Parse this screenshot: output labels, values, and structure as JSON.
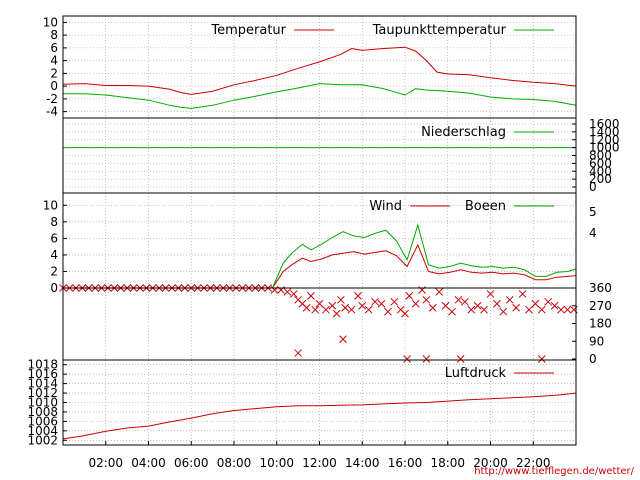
{
  "footer_url": "http://www.tiefflegen.de/wetter/",
  "colors": {
    "red": "#cc0000",
    "green": "#00aa00",
    "grid": "#999999"
  },
  "chart_data": [
    {
      "type": "line",
      "panel": "temperature",
      "x_unit": "hour",
      "xlim": [
        0,
        24
      ],
      "x_tick_labels": [
        "02:00",
        "04:00",
        "06:00",
        "08:00",
        "10:00",
        "12:00",
        "14:00",
        "16:00",
        "18:00",
        "20:00",
        "22:00"
      ],
      "x_tick_values": [
        2,
        4,
        6,
        8,
        10,
        12,
        14,
        16,
        18,
        20,
        22
      ],
      "ylim": [
        -5,
        11
      ],
      "y_ticks": [
        -4,
        -2,
        0,
        2,
        4,
        6,
        8,
        10
      ],
      "grid": true,
      "legend_position": "top-right",
      "series": [
        {
          "name": "Temperatur",
          "color": "red",
          "x": [
            0,
            1,
            2,
            3,
            4,
            5,
            5.5,
            6,
            7,
            8,
            9,
            10,
            11,
            12,
            13,
            13.5,
            14,
            15,
            16,
            16.5,
            17,
            17.5,
            18,
            19,
            20,
            21,
            22,
            23,
            24
          ],
          "y": [
            0.3,
            0.4,
            0.1,
            0.1,
            0.0,
            -0.5,
            -1.0,
            -1.3,
            -0.8,
            0.2,
            0.9,
            1.7,
            2.8,
            3.8,
            5.0,
            5.9,
            5.6,
            5.9,
            6.1,
            5.5,
            4.0,
            2.2,
            1.9,
            1.8,
            1.3,
            0.9,
            0.6,
            0.4,
            0.0
          ]
        },
        {
          "name": "Taupunkttemperatur",
          "color": "green",
          "x": [
            0,
            1,
            2,
            3,
            4,
            5,
            5.5,
            6,
            7,
            8,
            9,
            10,
            11,
            12,
            13,
            14,
            15,
            16,
            16.5,
            17,
            18,
            19,
            20,
            21,
            22,
            23,
            24
          ],
          "y": [
            -1.2,
            -1.2,
            -1.4,
            -1.8,
            -2.2,
            -3.0,
            -3.3,
            -3.5,
            -3.0,
            -2.2,
            -1.6,
            -0.9,
            -0.3,
            0.4,
            0.2,
            0.2,
            -0.4,
            -1.4,
            -0.4,
            -0.6,
            -0.8,
            -1.1,
            -1.7,
            -2.0,
            -2.1,
            -2.4,
            -3.0
          ]
        }
      ]
    },
    {
      "type": "line",
      "panel": "precipitation",
      "xlim": [
        0,
        24
      ],
      "ylim": [
        0,
        1600
      ],
      "y_ticks": [
        0,
        200,
        400,
        600,
        800,
        1000,
        1200,
        1400,
        1600
      ],
      "y_axis_side": "right",
      "legend_position": "top-right",
      "series": [
        {
          "name": "Niederschlag",
          "color": "green",
          "x": [
            0,
            24
          ],
          "y": [
            1000,
            1000
          ]
        }
      ]
    },
    {
      "type": "line",
      "panel": "wind",
      "xlim": [
        0,
        24
      ],
      "ylim": [
        0,
        11
      ],
      "y_ticks": [
        0,
        2,
        4,
        6,
        8,
        10
      ],
      "right_y_ticks": [
        4,
        5
      ],
      "legend_position": "top-right",
      "series": [
        {
          "name": "Wind",
          "color": "red",
          "x": [
            9.8,
            10.3,
            10.7,
            11.2,
            11.6,
            12.1,
            12.6,
            13.1,
            13.6,
            14.1,
            14.6,
            15.1,
            15.6,
            16.1,
            16.6,
            17.1,
            17.6,
            18.1,
            18.6,
            19.1,
            19.6,
            20.1,
            20.6,
            21.1,
            21.6,
            22.1,
            22.6,
            23.1,
            23.6,
            24
          ],
          "y": [
            0,
            2.0,
            2.8,
            3.6,
            3.2,
            3.5,
            4.0,
            4.2,
            4.4,
            4.1,
            4.3,
            4.5,
            3.9,
            2.6,
            5.2,
            2.0,
            1.7,
            1.9,
            2.2,
            1.9,
            1.8,
            1.9,
            1.7,
            1.8,
            1.6,
            1.0,
            1.0,
            1.3,
            1.4,
            1.5
          ]
        },
        {
          "name": "Boeen",
          "color": "green",
          "x": [
            9.8,
            10.3,
            10.7,
            11.2,
            11.6,
            12.1,
            12.6,
            13.1,
            13.6,
            14.1,
            14.6,
            15.1,
            15.6,
            16.1,
            16.6,
            17.1,
            17.6,
            18.1,
            18.6,
            19.1,
            19.6,
            20.1,
            20.6,
            21.1,
            21.6,
            22.1,
            22.6,
            23.1,
            23.6,
            24
          ],
          "y": [
            0,
            3.0,
            4.2,
            5.3,
            4.6,
            5.3,
            6.1,
            6.8,
            6.3,
            6.1,
            6.6,
            7.0,
            5.7,
            3.4,
            7.6,
            2.8,
            2.4,
            2.6,
            3.0,
            2.7,
            2.5,
            2.6,
            2.4,
            2.5,
            2.2,
            1.4,
            1.4,
            1.9,
            2.0,
            2.3
          ]
        }
      ]
    },
    {
      "type": "scatter",
      "panel": "wind-direction",
      "xlim": [
        0,
        24
      ],
      "ylim": [
        0,
        360
      ],
      "y_ticks": [
        0,
        90,
        180,
        270,
        360
      ],
      "y_axis_side": "right",
      "marker": "x",
      "color": "red",
      "series": [
        {
          "name": "",
          "color": "red",
          "x": [
            0,
            0.3,
            0.6,
            0.9,
            1.2,
            1.5,
            1.8,
            2.1,
            2.4,
            2.7,
            3.0,
            3.3,
            3.6,
            3.9,
            4.2,
            4.5,
            4.8,
            5.1,
            5.4,
            5.7,
            6.0,
            6.3,
            6.6,
            6.9,
            7.2,
            7.5,
            7.8,
            8.1,
            8.4,
            8.7,
            9.0,
            9.3,
            9.6,
            9.9,
            10.2,
            10.5,
            10.8,
            11.0,
            11.2,
            11.4,
            11.6,
            11.8,
            12.0,
            12.3,
            12.6,
            12.8,
            13.0,
            13.2,
            13.5,
            13.8,
            14.0,
            14.3,
            14.6,
            14.9,
            15.2,
            15.5,
            15.8,
            16.0,
            16.2,
            16.5,
            16.8,
            17.0,
            17.3,
            17.6,
            17.9,
            18.2,
            18.5,
            18.8,
            19.1,
            19.4,
            19.7,
            20.0,
            20.3,
            20.6,
            20.9,
            21.2,
            21.5,
            21.8,
            22.1,
            22.4,
            22.7,
            23.0,
            23.3,
            23.6,
            23.9,
            11.0,
            13.1,
            16.1,
            17.0,
            18.6,
            22.4
          ],
          "y": [
            360,
            360,
            360,
            360,
            360,
            360,
            360,
            360,
            360,
            360,
            360,
            360,
            360,
            360,
            360,
            360,
            360,
            360,
            360,
            360,
            360,
            360,
            360,
            360,
            360,
            360,
            360,
            360,
            360,
            360,
            360,
            360,
            360,
            350,
            350,
            340,
            330,
            300,
            280,
            260,
            320,
            250,
            280,
            250,
            270,
            230,
            300,
            260,
            250,
            320,
            270,
            250,
            290,
            280,
            240,
            290,
            250,
            230,
            320,
            280,
            350,
            300,
            260,
            340,
            270,
            240,
            300,
            290,
            250,
            270,
            250,
            330,
            280,
            240,
            300,
            260,
            330,
            250,
            280,
            250,
            290,
            270,
            250,
            250,
            250,
            30,
            100,
            0,
            0,
            0,
            0
          ]
        }
      ]
    },
    {
      "type": "line",
      "panel": "pressure",
      "xlim": [
        0,
        24
      ],
      "ylim": [
        1001,
        1019
      ],
      "y_ticks": [
        1002,
        1004,
        1006,
        1008,
        1010,
        1012,
        1014,
        1016,
        1018
      ],
      "legend_position": "top-right",
      "series": [
        {
          "name": "Luftdruck",
          "color": "red",
          "x": [
            0,
            1,
            2,
            3,
            4,
            5,
            6,
            7,
            8,
            9,
            10,
            11,
            12,
            13,
            14,
            15,
            16,
            17,
            18,
            19,
            20,
            21,
            22,
            23,
            24
          ],
          "y": [
            1002.3,
            1003.0,
            1003.9,
            1004.6,
            1005.0,
            1005.9,
            1006.7,
            1007.6,
            1008.3,
            1008.7,
            1009.1,
            1009.3,
            1009.3,
            1009.4,
            1009.5,
            1009.7,
            1009.9,
            1010.0,
            1010.3,
            1010.6,
            1010.8,
            1011.0,
            1011.2,
            1011.5,
            1012.0
          ]
        }
      ]
    }
  ],
  "legend": {
    "temperature": [
      "Temperatur",
      "Taupunkttemperatur"
    ],
    "precipitation": [
      "Niederschlag"
    ],
    "wind": [
      "Wind",
      "Boeen"
    ],
    "pressure": [
      "Luftdruck"
    ]
  }
}
